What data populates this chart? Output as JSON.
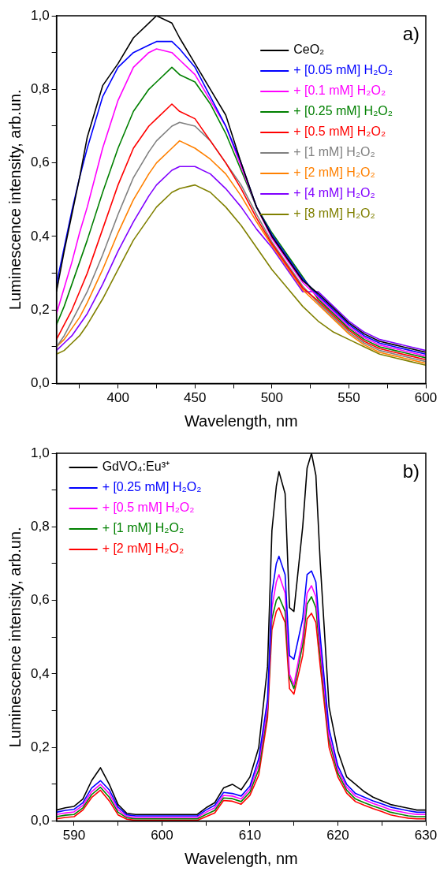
{
  "chart_data": [
    {
      "type": "line",
      "annotations": [
        "a)"
      ],
      "xlabel": "Wavelength, nm",
      "ylabel": "Luminescence intensity, arb.un.",
      "legend": "top right",
      "grid": false,
      "marker": "none",
      "line_style": "solid",
      "xlim": [
        360,
        600
      ],
      "ylim": [
        0,
        1.0
      ],
      "xticks": [
        {
          "value": 375,
          "label": null
        },
        400,
        {
          "value": 425,
          "label": null
        },
        450,
        {
          "value": 475,
          "label": null
        },
        500,
        {
          "value": 525,
          "label": null
        },
        550,
        {
          "value": 575,
          "label": null
        },
        600
      ],
      "yticks": [
        {
          "value": 0,
          "label": "0,0"
        },
        {
          "value": 0.1,
          "label": null
        },
        {
          "value": 0.2,
          "label": "0,2"
        },
        {
          "value": 0.3,
          "label": null
        },
        {
          "value": 0.4,
          "label": "0,4"
        },
        {
          "value": 0.5,
          "label": null
        },
        {
          "value": 0.6,
          "label": "0,6"
        },
        {
          "value": 0.7,
          "label": null
        },
        {
          "value": 0.8,
          "label": "0,8"
        },
        {
          "value": 0.9,
          "label": null
        },
        {
          "value": 1.0,
          "label": "1,0"
        }
      ],
      "x": [
        360,
        365,
        370,
        375,
        380,
        390,
        400,
        410,
        420,
        425,
        435,
        440,
        450,
        460,
        470,
        480,
        490,
        500,
        510,
        520,
        530,
        540,
        550,
        560,
        570,
        580,
        590,
        600
      ],
      "series": [
        {
          "name": "CeO₂",
          "color": "#000000",
          "values": [
            0.25,
            0.36,
            0.46,
            0.56,
            0.67,
            0.81,
            0.87,
            0.94,
            0.98,
            1.0,
            0.98,
            0.94,
            0.87,
            0.8,
            0.73,
            0.6,
            0.48,
            0.4,
            0.34,
            0.28,
            0.245,
            0.205,
            0.165,
            0.135,
            0.115,
            0.105,
            0.095,
            0.085
          ]
        },
        {
          "name": "+ [0.05 mM] H₂O₂",
          "color": "#0000ff",
          "values": [
            0.27,
            0.37,
            0.47,
            0.56,
            0.64,
            0.78,
            0.86,
            0.9,
            0.92,
            0.93,
            0.93,
            0.91,
            0.86,
            0.78,
            0.7,
            0.6,
            0.48,
            0.405,
            0.345,
            0.285,
            0.24,
            0.2,
            0.16,
            0.13,
            0.11,
            0.1,
            0.09,
            0.08
          ]
        },
        {
          "name": "+ [0.1 mM] H₂O₂",
          "color": "#ff00ff",
          "values": [
            0.19,
            0.26,
            0.33,
            0.41,
            0.48,
            0.64,
            0.77,
            0.86,
            0.9,
            0.91,
            0.9,
            0.88,
            0.84,
            0.77,
            0.7,
            0.59,
            0.48,
            0.395,
            0.335,
            0.275,
            0.235,
            0.195,
            0.155,
            0.125,
            0.105,
            0.095,
            0.085,
            0.075
          ]
        },
        {
          "name": "+ [0.25 mM] H₂O₂",
          "color": "#008000",
          "values": [
            0.16,
            0.21,
            0.27,
            0.33,
            0.39,
            0.52,
            0.64,
            0.74,
            0.8,
            0.82,
            0.86,
            0.84,
            0.82,
            0.76,
            0.68,
            0.58,
            0.48,
            0.41,
            0.35,
            0.29,
            0.23,
            0.19,
            0.15,
            0.12,
            0.1,
            0.09,
            0.08,
            0.07
          ]
        },
        {
          "name": "+ [0.5 mM] H₂O₂",
          "color": "#ff0000",
          "values": [
            0.12,
            0.16,
            0.2,
            0.25,
            0.3,
            0.42,
            0.54,
            0.64,
            0.7,
            0.72,
            0.76,
            0.74,
            0.72,
            0.66,
            0.6,
            0.53,
            0.45,
            0.38,
            0.32,
            0.26,
            0.225,
            0.185,
            0.145,
            0.115,
            0.095,
            0.085,
            0.075,
            0.065
          ]
        },
        {
          "name": "+ [1 mM] H₂O₂",
          "color": "#808080",
          "values": [
            0.1,
            0.13,
            0.17,
            0.21,
            0.25,
            0.35,
            0.46,
            0.56,
            0.63,
            0.66,
            0.7,
            0.71,
            0.7,
            0.66,
            0.6,
            0.54,
            0.46,
            0.385,
            0.325,
            0.265,
            0.22,
            0.18,
            0.14,
            0.11,
            0.09,
            0.08,
            0.07,
            0.06
          ]
        },
        {
          "name": "+ [2 mM] H₂O₂",
          "color": "#ff8000",
          "values": [
            0.1,
            0.12,
            0.15,
            0.18,
            0.22,
            0.31,
            0.41,
            0.5,
            0.57,
            0.6,
            0.64,
            0.66,
            0.64,
            0.61,
            0.57,
            0.51,
            0.44,
            0.375,
            0.315,
            0.255,
            0.215,
            0.175,
            0.135,
            0.105,
            0.085,
            0.075,
            0.065,
            0.055
          ]
        },
        {
          "name": "+ [4 mM] H₂O₂",
          "color": "#8000ff",
          "values": [
            0.09,
            0.11,
            0.13,
            0.16,
            0.19,
            0.27,
            0.36,
            0.44,
            0.51,
            0.54,
            0.58,
            0.59,
            0.59,
            0.57,
            0.53,
            0.48,
            0.42,
            0.37,
            0.31,
            0.25,
            0.25,
            0.21,
            0.17,
            0.14,
            0.12,
            0.11,
            0.1,
            0.09
          ]
        },
        {
          "name": "+ [8 mM] H₂O₂",
          "color": "#808000",
          "values": [
            0.08,
            0.09,
            0.11,
            0.13,
            0.16,
            0.23,
            0.31,
            0.39,
            0.45,
            0.48,
            0.52,
            0.53,
            0.54,
            0.52,
            0.48,
            0.43,
            0.37,
            0.31,
            0.26,
            0.21,
            0.17,
            0.14,
            0.12,
            0.1,
            0.08,
            0.07,
            0.06,
            0.05
          ]
        }
      ]
    },
    {
      "type": "line",
      "annotations": [
        "b)"
      ],
      "xlabel": "Wavelength, nm",
      "ylabel": "Luminescence intensity, arb.un.",
      "legend": "top left",
      "grid": false,
      "marker": "none",
      "line_style": "solid",
      "xlim": [
        588,
        630
      ],
      "ylim": [
        0,
        1.0
      ],
      "xticks": [
        590,
        {
          "value": 595,
          "label": null
        },
        600,
        {
          "value": 605,
          "label": null
        },
        610,
        {
          "value": 615,
          "label": null
        },
        620,
        {
          "value": 625,
          "label": null
        },
        630
      ],
      "yticks": [
        {
          "value": 0,
          "label": "0,0"
        },
        {
          "value": 0.1,
          "label": null
        },
        {
          "value": 0.2,
          "label": "0,2"
        },
        {
          "value": 0.3,
          "label": null
        },
        {
          "value": 0.4,
          "label": "0,4"
        },
        {
          "value": 0.5,
          "label": null
        },
        {
          "value": 0.6,
          "label": "0,6"
        },
        {
          "value": 0.7,
          "label": null
        },
        {
          "value": 0.8,
          "label": "0,8"
        },
        {
          "value": 0.9,
          "label": null
        },
        {
          "value": 1.0,
          "label": "1,0"
        }
      ],
      "x": [
        588,
        589,
        590,
        591,
        592,
        593,
        594,
        595,
        596,
        597,
        598,
        600,
        602,
        604,
        605,
        606,
        607,
        608,
        609,
        610,
        611,
        612,
        612.5,
        613,
        613.3,
        614,
        614.5,
        615,
        616,
        616.5,
        617,
        617.5,
        618,
        619,
        620,
        621,
        622,
        623,
        624,
        625,
        626,
        627,
        628,
        629,
        630
      ],
      "series": [
        {
          "name": "GdVO₄:Eu³⁺",
          "color": "#000000",
          "values": [
            0.03,
            0.036,
            0.04,
            0.06,
            0.11,
            0.145,
            0.1,
            0.045,
            0.021,
            0.018,
            0.018,
            0.018,
            0.018,
            0.018,
            0.036,
            0.05,
            0.09,
            0.1,
            0.085,
            0.12,
            0.2,
            0.42,
            0.79,
            0.91,
            0.95,
            0.89,
            0.58,
            0.57,
            0.8,
            0.96,
            1.0,
            0.94,
            0.7,
            0.31,
            0.19,
            0.12,
            0.1,
            0.08,
            0.065,
            0.055,
            0.045,
            0.04,
            0.035,
            0.03,
            0.03
          ]
        },
        {
          "name": "+ [0.25 mM] H₂O₂",
          "color": "#0000ff",
          "values": [
            0.024,
            0.029,
            0.032,
            0.05,
            0.09,
            0.11,
            0.085,
            0.038,
            0.017,
            0.014,
            0.014,
            0.014,
            0.014,
            0.014,
            0.03,
            0.043,
            0.078,
            0.075,
            0.068,
            0.095,
            0.17,
            0.33,
            0.62,
            0.7,
            0.72,
            0.67,
            0.45,
            0.44,
            0.55,
            0.67,
            0.68,
            0.65,
            0.5,
            0.25,
            0.15,
            0.1,
            0.075,
            0.065,
            0.055,
            0.047,
            0.038,
            0.033,
            0.028,
            0.024,
            0.024
          ]
        },
        {
          "name": "+ [0.5 mM] H₂O₂",
          "color": "#ff00ff",
          "values": [
            0.018,
            0.022,
            0.025,
            0.043,
            0.08,
            0.1,
            0.075,
            0.031,
            0.013,
            0.01,
            0.01,
            0.01,
            0.01,
            0.01,
            0.024,
            0.036,
            0.07,
            0.068,
            0.06,
            0.087,
            0.155,
            0.31,
            0.58,
            0.65,
            0.67,
            0.62,
            0.4,
            0.37,
            0.5,
            0.62,
            0.64,
            0.61,
            0.47,
            0.23,
            0.14,
            0.092,
            0.068,
            0.058,
            0.048,
            0.04,
            0.031,
            0.026,
            0.021,
            0.018,
            0.018
          ]
        },
        {
          "name": "+ [1 mM] H₂O₂",
          "color": "#008000",
          "values": [
            0.012,
            0.016,
            0.018,
            0.036,
            0.072,
            0.092,
            0.065,
            0.024,
            0.009,
            0.006,
            0.006,
            0.006,
            0.006,
            0.006,
            0.018,
            0.029,
            0.063,
            0.061,
            0.053,
            0.079,
            0.14,
            0.3,
            0.55,
            0.6,
            0.61,
            0.57,
            0.39,
            0.36,
            0.48,
            0.59,
            0.61,
            0.58,
            0.45,
            0.22,
            0.13,
            0.084,
            0.06,
            0.05,
            0.041,
            0.033,
            0.024,
            0.019,
            0.014,
            0.012,
            0.012
          ]
        },
        {
          "name": "+ [2 mM] H₂O₂",
          "color": "#ff0000",
          "values": [
            0.006,
            0.01,
            0.012,
            0.03,
            0.064,
            0.084,
            0.055,
            0.017,
            0.005,
            0.002,
            0.002,
            0.002,
            0.002,
            0.002,
            0.012,
            0.022,
            0.056,
            0.054,
            0.046,
            0.07,
            0.125,
            0.28,
            0.52,
            0.57,
            0.58,
            0.54,
            0.36,
            0.345,
            0.45,
            0.55,
            0.565,
            0.54,
            0.42,
            0.2,
            0.12,
            0.076,
            0.053,
            0.043,
            0.034,
            0.026,
            0.017,
            0.012,
            0.008,
            0.006,
            0.006
          ]
        }
      ]
    }
  ]
}
